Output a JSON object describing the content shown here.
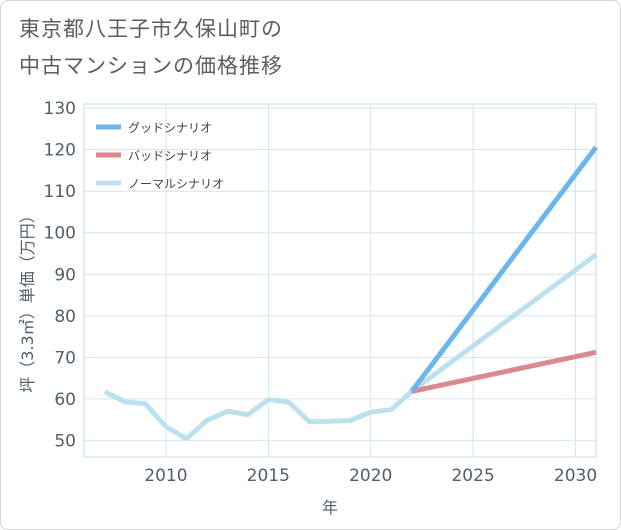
{
  "title": {
    "line1": "東京都八王子市久保山町の",
    "line2": "中古マンションの価格推移"
  },
  "chart_data": {
    "type": "line",
    "xlabel": "年",
    "ylabel": "坪（3.3㎡）単価（万円）",
    "xlim": [
      2006,
      2031
    ],
    "ylim": [
      46,
      131
    ],
    "x_ticks": [
      2010,
      2015,
      2020,
      2025,
      2030
    ],
    "y_ticks": [
      50,
      60,
      70,
      80,
      90,
      100,
      110,
      120,
      130
    ],
    "grid": true,
    "legend": "top-left",
    "series": [
      {
        "name": "グッドシナリオ",
        "color": "#6cb6ec",
        "width": 5,
        "points": [
          [
            2022,
            61.8
          ],
          [
            2031,
            120.6
          ]
        ]
      },
      {
        "name": "バッドシナリオ",
        "color": "#dc8890",
        "width": 5,
        "points": [
          [
            2022,
            61.8
          ],
          [
            2031,
            71.2
          ]
        ]
      },
      {
        "name": "ノーマルシナリオ",
        "color": "#bde0ee",
        "width": 5,
        "points": [
          [
            2007,
            61.7
          ],
          [
            2008,
            59.3
          ],
          [
            2009,
            58.8
          ],
          [
            2010,
            53.3
          ],
          [
            2011,
            50.4
          ],
          [
            2012,
            54.8
          ],
          [
            2013,
            57.0
          ],
          [
            2014,
            56.2
          ],
          [
            2015,
            59.8
          ],
          [
            2016,
            59.2
          ],
          [
            2017,
            54.5
          ],
          [
            2018,
            54.6
          ],
          [
            2019,
            54.8
          ],
          [
            2020,
            56.8
          ],
          [
            2021,
            57.4
          ],
          [
            2022,
            61.8
          ],
          [
            2031,
            94.7
          ]
        ]
      }
    ]
  }
}
